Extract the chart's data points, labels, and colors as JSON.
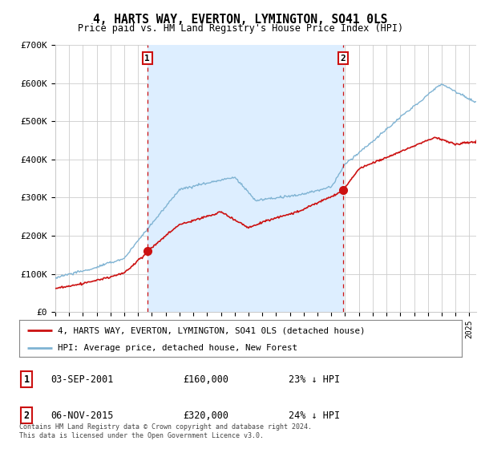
{
  "title": "4, HARTS WAY, EVERTON, LYMINGTON, SO41 0LS",
  "subtitle": "Price paid vs. HM Land Registry's House Price Index (HPI)",
  "ylim": [
    0,
    700000
  ],
  "yticks": [
    0,
    100000,
    200000,
    300000,
    400000,
    500000,
    600000,
    700000
  ],
  "ytick_labels": [
    "£0",
    "£100K",
    "£200K",
    "£300K",
    "£400K",
    "£500K",
    "£600K",
    "£700K"
  ],
  "sale1": {
    "date_num": 2001.67,
    "price": 160000,
    "label": "1"
  },
  "sale2": {
    "date_num": 2015.84,
    "price": 320000,
    "label": "2"
  },
  "hpi_color": "#7fb3d3",
  "price_color": "#cc1111",
  "vline_color": "#cc1111",
  "shade_color": "#ddeeff",
  "background_color": "#ffffff",
  "grid_color": "#cccccc",
  "legend1_label": "4, HARTS WAY, EVERTON, LYMINGTON, SO41 0LS (detached house)",
  "legend2_label": "HPI: Average price, detached house, New Forest",
  "footer": "Contains HM Land Registry data © Crown copyright and database right 2024.\nThis data is licensed under the Open Government Licence v3.0.",
  "table_rows": [
    {
      "num": "1",
      "date": "03-SEP-2001",
      "price": "£160,000",
      "hpi": "23% ↓ HPI"
    },
    {
      "num": "2",
      "date": "06-NOV-2015",
      "price": "£320,000",
      "hpi": "24% ↓ HPI"
    }
  ],
  "xmin": 1995.0,
  "xmax": 2025.5
}
